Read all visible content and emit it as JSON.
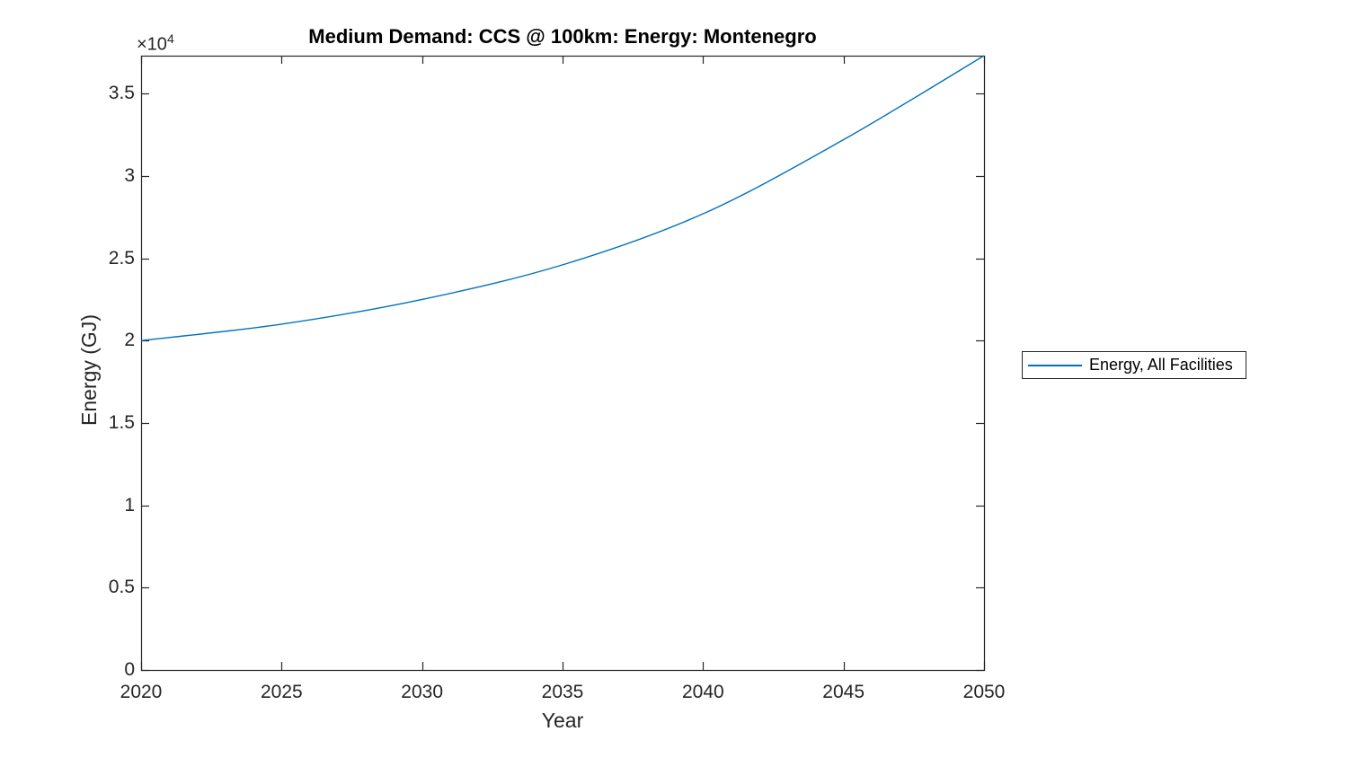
{
  "chart_data": {
    "type": "line",
    "title": "Medium Demand: CCS @ 100km: Energy: Montenegro",
    "xlabel": "Year",
    "ylabel": "Energy (GJ)",
    "y_axis_multiplier": {
      "base": "×10",
      "exponent": "4"
    },
    "x": [
      2020,
      2025,
      2030,
      2035,
      2040,
      2045,
      2050
    ],
    "series": [
      {
        "name": "Energy, All Facilities",
        "color": "#0072BD",
        "values": [
          20000,
          21000,
          22500,
          24600,
          27700,
          32200,
          37300
        ]
      }
    ],
    "xlim": [
      2020,
      2050
    ],
    "ylim": [
      0,
      37300
    ],
    "xticks": [
      2020,
      2025,
      2030,
      2035,
      2040,
      2045,
      2050
    ],
    "xticklabels": [
      "2020",
      "2025",
      "2030",
      "2035",
      "2040",
      "2045",
      "2050"
    ],
    "yticks": [
      0,
      5000,
      10000,
      15000,
      20000,
      25000,
      30000,
      35000
    ],
    "yticklabels": [
      "0",
      "0.5",
      "1",
      "1.5",
      "2",
      "2.5",
      "3",
      "3.5"
    ],
    "grid": false,
    "legend_position": "outside-right",
    "axis_color": "#262626",
    "background": "#ffffff"
  }
}
